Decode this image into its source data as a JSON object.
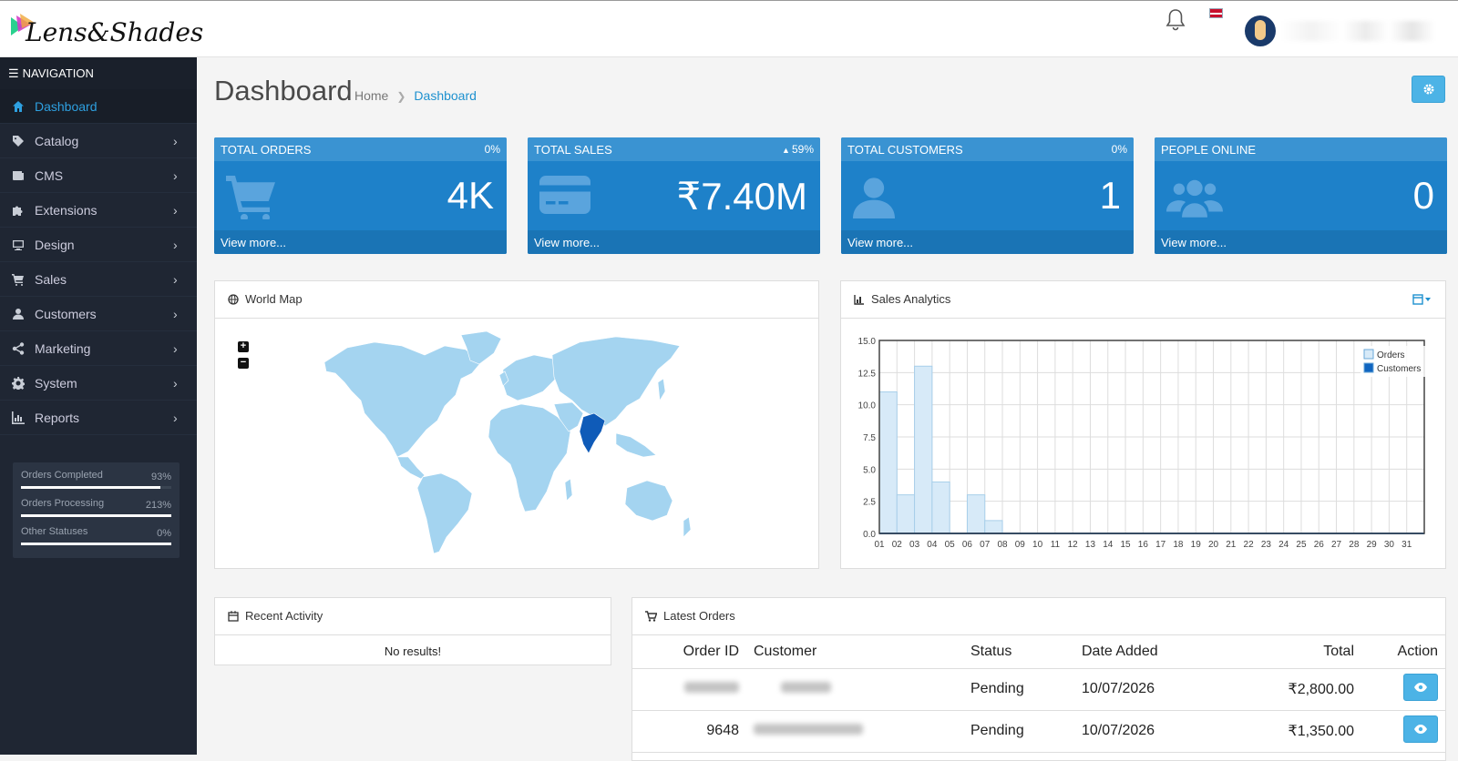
{
  "app": {
    "logo_text": "Lens&Shades"
  },
  "header": {
    "notification_icon": "bell-icon",
    "language_icon": "flag-icon"
  },
  "sidebar": {
    "heading": "NAVIGATION",
    "items": [
      {
        "label": "Dashboard",
        "icon": "home-icon",
        "active": true
      },
      {
        "label": "Catalog",
        "icon": "tag-icon"
      },
      {
        "label": "CMS",
        "icon": "newspaper-icon"
      },
      {
        "label": "Extensions",
        "icon": "puzzle-icon"
      },
      {
        "label": "Design",
        "icon": "desktop-icon"
      },
      {
        "label": "Sales",
        "icon": "cart-icon"
      },
      {
        "label": "Customers",
        "icon": "user-icon"
      },
      {
        "label": "Marketing",
        "icon": "share-icon"
      },
      {
        "label": "System",
        "icon": "gear-icon"
      },
      {
        "label": "Reports",
        "icon": "chart-icon"
      }
    ],
    "stats": [
      {
        "label": "Orders Completed",
        "value": "93%",
        "fill": 0.93
      },
      {
        "label": "Orders Processing",
        "value": "213%",
        "fill": 1.0
      },
      {
        "label": "Other Statuses",
        "value": "0%",
        "fill": 1.0
      }
    ]
  },
  "page": {
    "title": "Dashboard",
    "breadcrumb": [
      "Home",
      "Dashboard"
    ]
  },
  "tiles": [
    {
      "title": "TOTAL ORDERS",
      "change": "0%",
      "value": "4K",
      "link": "View more...",
      "icon": "cart-icon"
    },
    {
      "title": "TOTAL SALES",
      "change": "59%",
      "value": "₹7.40M",
      "link": "View more...",
      "icon": "credit-card-icon"
    },
    {
      "title": "TOTAL CUSTOMERS",
      "change": "0%",
      "value": "1",
      "link": "View more...",
      "icon": "user-icon"
    },
    {
      "title": "PEOPLE ONLINE",
      "change": "",
      "value": "0",
      "link": "View more...",
      "icon": "users-icon"
    }
  ],
  "world_map": {
    "title": "World Map",
    "highlight": "India",
    "base_color": "#a4d4f0",
    "highlight_color": "#0f5bb8"
  },
  "chart": {
    "title": "Sales Analytics"
  },
  "chart_data": {
    "type": "bar",
    "categories": [
      "01",
      "02",
      "03",
      "04",
      "05",
      "06",
      "07",
      "08",
      "09",
      "10",
      "11",
      "12",
      "13",
      "14",
      "15",
      "16",
      "17",
      "18",
      "19",
      "20",
      "21",
      "22",
      "23",
      "24",
      "25",
      "26",
      "27",
      "28",
      "29",
      "30",
      "31"
    ],
    "series": [
      {
        "name": "Orders",
        "color": "#d7eaf8",
        "values": [
          11,
          3,
          13,
          4,
          0,
          3,
          1,
          0,
          0,
          0,
          0,
          0,
          0,
          0,
          0,
          0,
          0,
          0,
          0,
          0,
          0,
          0,
          0,
          0,
          0,
          0,
          0,
          0,
          0,
          0,
          0
        ]
      },
      {
        "name": "Customers",
        "color": "#1065c0",
        "values": [
          0,
          0,
          0,
          0,
          0,
          0,
          0,
          0,
          0,
          0,
          0,
          0,
          0,
          0,
          0,
          0,
          0,
          0,
          0,
          0,
          0,
          0,
          0,
          0,
          0,
          0,
          0,
          0,
          0,
          0,
          0
        ]
      }
    ],
    "yticks": [
      "0.0",
      "2.5",
      "5.0",
      "7.5",
      "10.0",
      "12.5",
      "15.0"
    ],
    "ylim": [
      0,
      15
    ],
    "grid": true,
    "legend": "top-right"
  },
  "recent_activity": {
    "title": "Recent Activity",
    "empty": "No results!"
  },
  "latest_orders": {
    "title": "Latest Orders",
    "columns": [
      "Order ID",
      "Customer",
      "Status",
      "Date Added",
      "Total",
      "Action"
    ],
    "rows": [
      {
        "id": "",
        "customer": "",
        "status": "Pending",
        "date": "10/07/2026",
        "total": "₹2,800.00"
      },
      {
        "id": "9648",
        "customer": "",
        "status": "Pending",
        "date": "10/07/2026",
        "total": "₹1,350.00"
      }
    ]
  }
}
